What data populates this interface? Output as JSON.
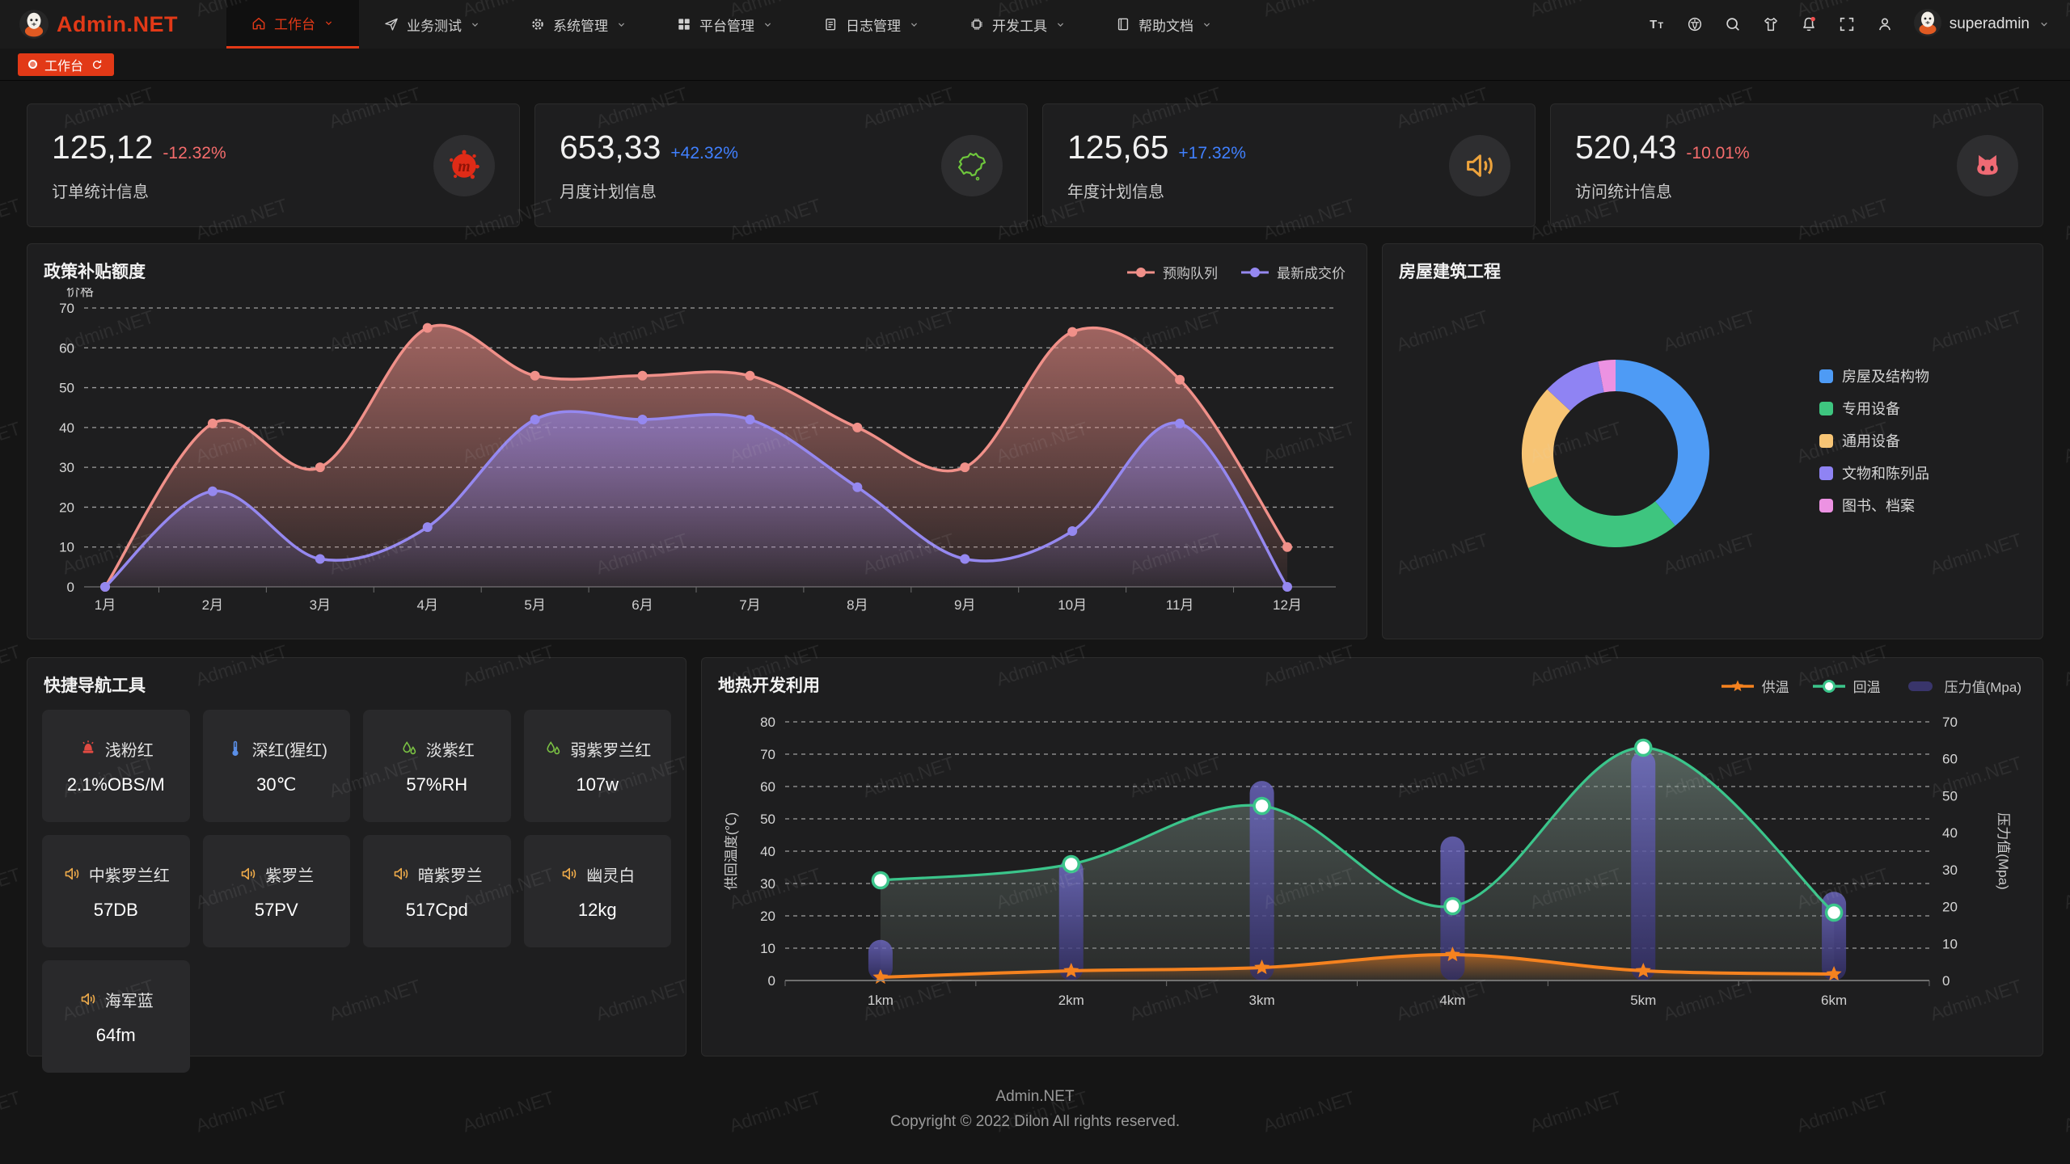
{
  "accent": "#e23917",
  "watermark": "Admin.NET",
  "header": {
    "logo_text": "Admin.NET",
    "nav": [
      {
        "label": "工作台",
        "icon": "home-icon",
        "active": true
      },
      {
        "label": "业务测试",
        "icon": "send-icon",
        "active": false
      },
      {
        "label": "系统管理",
        "icon": "gear-icon",
        "active": false
      },
      {
        "label": "平台管理",
        "icon": "grid-icon",
        "active": false
      },
      {
        "label": "日志管理",
        "icon": "log-icon",
        "active": false
      },
      {
        "label": "开发工具",
        "icon": "chip-icon",
        "active": false
      },
      {
        "label": "帮助文档",
        "icon": "book-icon",
        "active": false
      }
    ],
    "right_icons": [
      "text-size-icon",
      "language-icon",
      "search-icon",
      "theme-icon",
      "bell-icon",
      "fullscreen-icon",
      "user-icon"
    ],
    "user": "superadmin"
  },
  "tabbar": {
    "active_tab": "工作台"
  },
  "stats": [
    {
      "value": "125,12",
      "delta": "-12.32%",
      "trend": "down",
      "label": "订单统计信息",
      "icon": "meetup-icon"
    },
    {
      "value": "653,33",
      "delta": "+42.32%",
      "trend": "up",
      "label": "月度计划信息",
      "icon": "china-map-icon"
    },
    {
      "value": "125,65",
      "delta": "+17.32%",
      "trend": "up",
      "label": "年度计划信息",
      "icon": "speaker-stat-icon"
    },
    {
      "value": "520,43",
      "delta": "-10.01%",
      "trend": "down",
      "label": "访问统计信息",
      "icon": "cat-icon"
    }
  ],
  "chart_data": [
    {
      "type": "area",
      "title": "政策补贴额度",
      "ylabel": "价格",
      "ylim": [
        0,
        70
      ],
      "ytick_step": 10,
      "grid": true,
      "legend_position": "top-right",
      "categories": [
        "1月",
        "2月",
        "3月",
        "4月",
        "5月",
        "6月",
        "7月",
        "8月",
        "9月",
        "10月",
        "11月",
        "12月"
      ],
      "series": [
        {
          "name": "预购队列",
          "color": "#F09089",
          "values": [
            0,
            41,
            30,
            65,
            53,
            53,
            53,
            40,
            30,
            64,
            52,
            10
          ]
        },
        {
          "name": "最新成交价",
          "color": "#9588F0",
          "values": [
            0,
            24,
            7,
            15,
            42,
            42,
            42,
            25,
            7,
            14,
            41,
            0
          ]
        }
      ]
    },
    {
      "type": "pie",
      "title": "房屋建筑工程",
      "labels": [
        "房屋及结构物",
        "专用设备",
        "通用设备",
        "文物和陈列品",
        "图书、档案"
      ],
      "values": [
        39,
        30,
        18,
        10,
        3
      ],
      "colors": [
        "#4E9BF5",
        "#3EC57F",
        "#F7C474",
        "#8F83F3",
        "#EC92E2"
      ],
      "legend_position": "right",
      "donut": true
    },
    {
      "type": "mixed",
      "title": "地热开发利用",
      "categories": [
        "1km",
        "2km",
        "3km",
        "4km",
        "5km",
        "6km"
      ],
      "left_axis": {
        "label": "供回温度(℃)",
        "min": 0,
        "max": 80,
        "step": 10
      },
      "right_axis": {
        "label": "压力值(Mpa)",
        "min": 0,
        "max": 70,
        "step": 10
      },
      "grid": true,
      "legend_position": "top-right",
      "series": [
        {
          "name": "供温",
          "type": "line",
          "marker": "star",
          "axis": "left",
          "color": "#F5821F",
          "values": [
            1,
            3,
            4,
            8,
            3,
            2
          ]
        },
        {
          "name": "回温",
          "type": "line",
          "marker": "circle",
          "axis": "left",
          "color": "#3BC58B",
          "values": [
            31,
            36,
            54,
            23,
            72,
            21
          ]
        },
        {
          "name": "压力值(Mpa)",
          "type": "bar",
          "axis": "right",
          "color": "#39356b",
          "values": [
            11,
            33,
            54,
            39,
            62,
            24
          ]
        }
      ]
    }
  ],
  "quick_nav": {
    "title": "快捷导航工具",
    "items": [
      {
        "icon": "alarm-icon",
        "icon_color": "#e04a42",
        "name": "浅粉红",
        "value": "2.1%OBS/M"
      },
      {
        "icon": "thermometer-icon",
        "icon_color": "#5a8fe8",
        "name": "深红(猩红)",
        "value": "30℃"
      },
      {
        "icon": "humidity-icon",
        "icon_color": "#7ac143",
        "name": "淡紫红",
        "value": "57%RH"
      },
      {
        "icon": "humidity-icon",
        "icon_color": "#7ac143",
        "name": "弱紫罗兰红",
        "value": "107w"
      },
      {
        "icon": "speaker-icon",
        "icon_color": "#edaa4a",
        "name": "中紫罗兰红",
        "value": "57DB"
      },
      {
        "icon": "speaker-icon",
        "icon_color": "#edaa4a",
        "name": "紫罗兰",
        "value": "57PV"
      },
      {
        "icon": "speaker-icon",
        "icon_color": "#edaa4a",
        "name": "暗紫罗兰",
        "value": "517Cpd"
      },
      {
        "icon": "speaker-icon",
        "icon_color": "#edaa4a",
        "name": "幽灵白",
        "value": "12kg"
      },
      {
        "icon": "speaker-icon",
        "icon_color": "#edaa4a",
        "name": "海军蓝",
        "value": "64fm"
      }
    ]
  },
  "footer": {
    "line1": "Admin.NET",
    "line2": "Copyright © 2022 Dilon All rights reserved."
  }
}
